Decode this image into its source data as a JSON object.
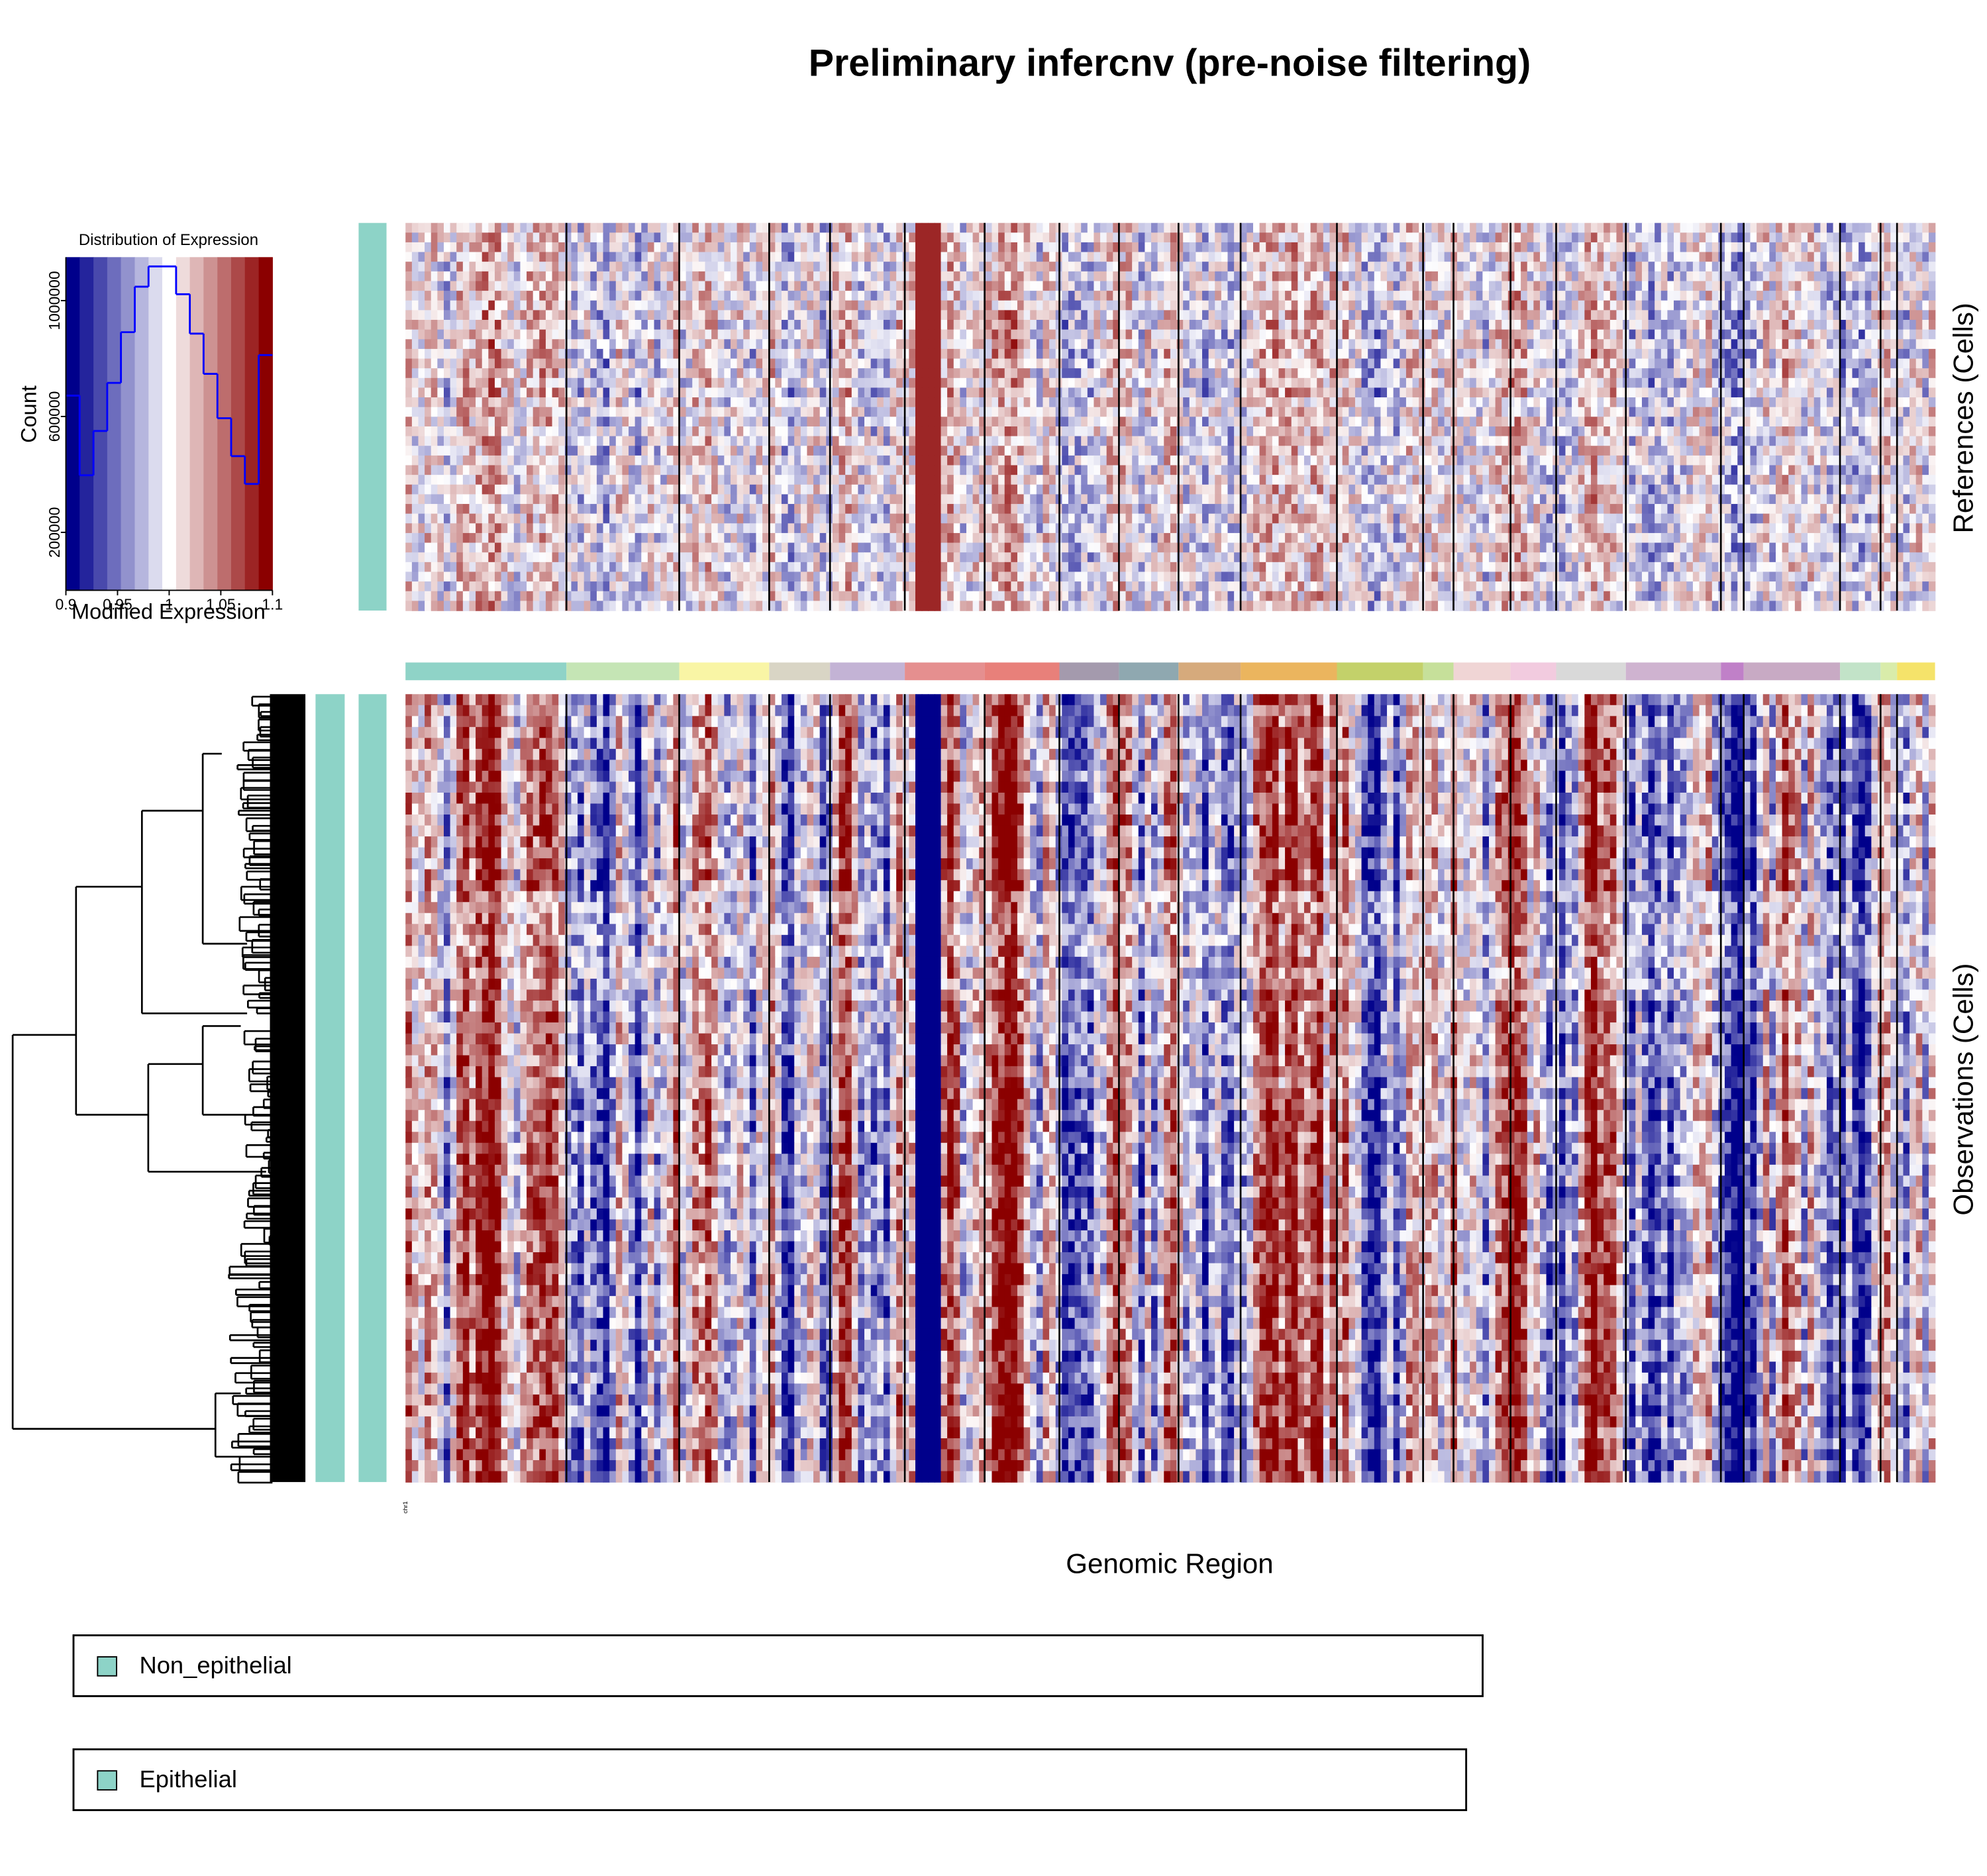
{
  "title": "Preliminary infercnv (pre-noise filtering)",
  "chart_data": {
    "type": "histogram",
    "title": "Distribution of Expression",
    "xlabel": "Modified Expression",
    "ylabel": "Count",
    "bins": [
      0.9,
      0.9133,
      0.9267,
      0.94,
      0.9533,
      0.9667,
      0.98,
      0.9933,
      1.0067,
      1.02,
      1.0333,
      1.0467,
      1.06,
      1.0733,
      1.0867,
      1.1
    ],
    "values": [
      672000,
      397000,
      550000,
      716000,
      891000,
      1048000,
      1118000,
      1118000,
      1022000,
      886000,
      747000,
      594000,
      463000,
      367000,
      812000
    ],
    "xlim": [
      0.9,
      1.1
    ],
    "ylim": [
      0,
      1150000
    ],
    "xticks": [
      0.9,
      0.95,
      1,
      1.05,
      1.1
    ],
    "yticks": [
      200000,
      600000,
      1000000
    ],
    "color": "#0000ff",
    "colorscale": [
      "#00008b",
      "#ffffff",
      "#8b0000"
    ]
  },
  "heatmap": {
    "references_label": "References (Cells)",
    "observations_label": "Observations (Cells)",
    "xlabel": "Genomic Region",
    "chromosome_label": "chr1"
  },
  "legend": [
    {
      "name": "Non_epithelial",
      "color": "#8dd3c7"
    },
    {
      "name": "Epithelial",
      "color": "#8dd3c7"
    }
  ]
}
